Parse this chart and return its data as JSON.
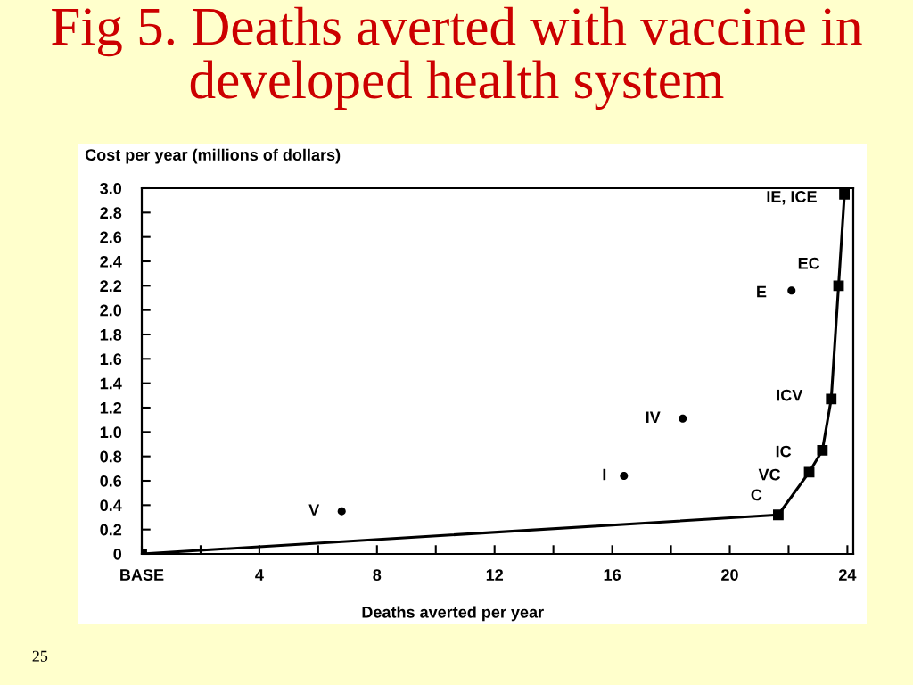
{
  "chart_data": {
    "type": "line",
    "title": "Fig 5. Deaths averted with vaccine in developed health system",
    "xlabel": "Deaths averted per year",
    "ylabel": "Cost per year (millions of dollars)",
    "series": [
      {
        "color": "#000000",
        "marker": "square",
        "line_style": "solid",
        "x": [
          0,
          21.65,
          22.7,
          23.15,
          23.45,
          23.7,
          23.9
        ],
        "values": [
          0,
          0.32,
          0.67,
          0.85,
          1.27,
          2.2,
          2.95
        ]
      },
      {
        "type": "scatter",
        "color": "#000000",
        "marker": "circle",
        "x": [
          6.8,
          16.4,
          18.4,
          22.1
        ],
        "values": [
          0.35,
          0.64,
          1.11,
          2.16
        ]
      }
    ],
    "xlim": [
      0,
      24.2
    ],
    "ylim": [
      0,
      3
    ],
    "xticks": [
      {
        "value": 0,
        "label": "BASE"
      },
      {
        "value": 2,
        "label": null
      },
      4,
      {
        "value": 6,
        "label": null
      },
      8,
      {
        "value": 10,
        "label": null
      },
      12,
      {
        "value": 14,
        "label": null
      },
      16,
      {
        "value": 18,
        "label": null
      },
      20,
      {
        "value": 22,
        "label": null
      },
      24
    ],
    "yticks": [
      0,
      0.2,
      0.4,
      0.6,
      0.8,
      {
        "value": 1,
        "label": "1.0"
      },
      1.2,
      1.4,
      1.6,
      1.8,
      {
        "value": 2,
        "label": "2.0"
      },
      2.2,
      2.4,
      2.6,
      2.8,
      {
        "value": 3,
        "label": "3.0"
      }
    ],
    "annotations": [
      {
        "text": "IE, ICE",
        "x": 23.9,
        "y": 2.95
      },
      {
        "text": "EC",
        "x": 23.7,
        "y": 2.2
      },
      {
        "text": "E",
        "x": 22.1,
        "y": 2.16
      },
      {
        "text": "ICV",
        "x": 23.45,
        "y": 1.27
      },
      {
        "text": "IC",
        "x": 23.15,
        "y": 0.85
      },
      {
        "text": "VC",
        "x": 22.7,
        "y": 0.67
      },
      {
        "text": "C",
        "x": 21.65,
        "y": 0.32
      },
      {
        "text": "V",
        "x": 6.8,
        "y": 0.35
      },
      {
        "text": "I",
        "x": 16.4,
        "y": 0.64
      },
      {
        "text": "IV",
        "x": 18.4,
        "y": 1.11
      },
      "25"
    ]
  }
}
